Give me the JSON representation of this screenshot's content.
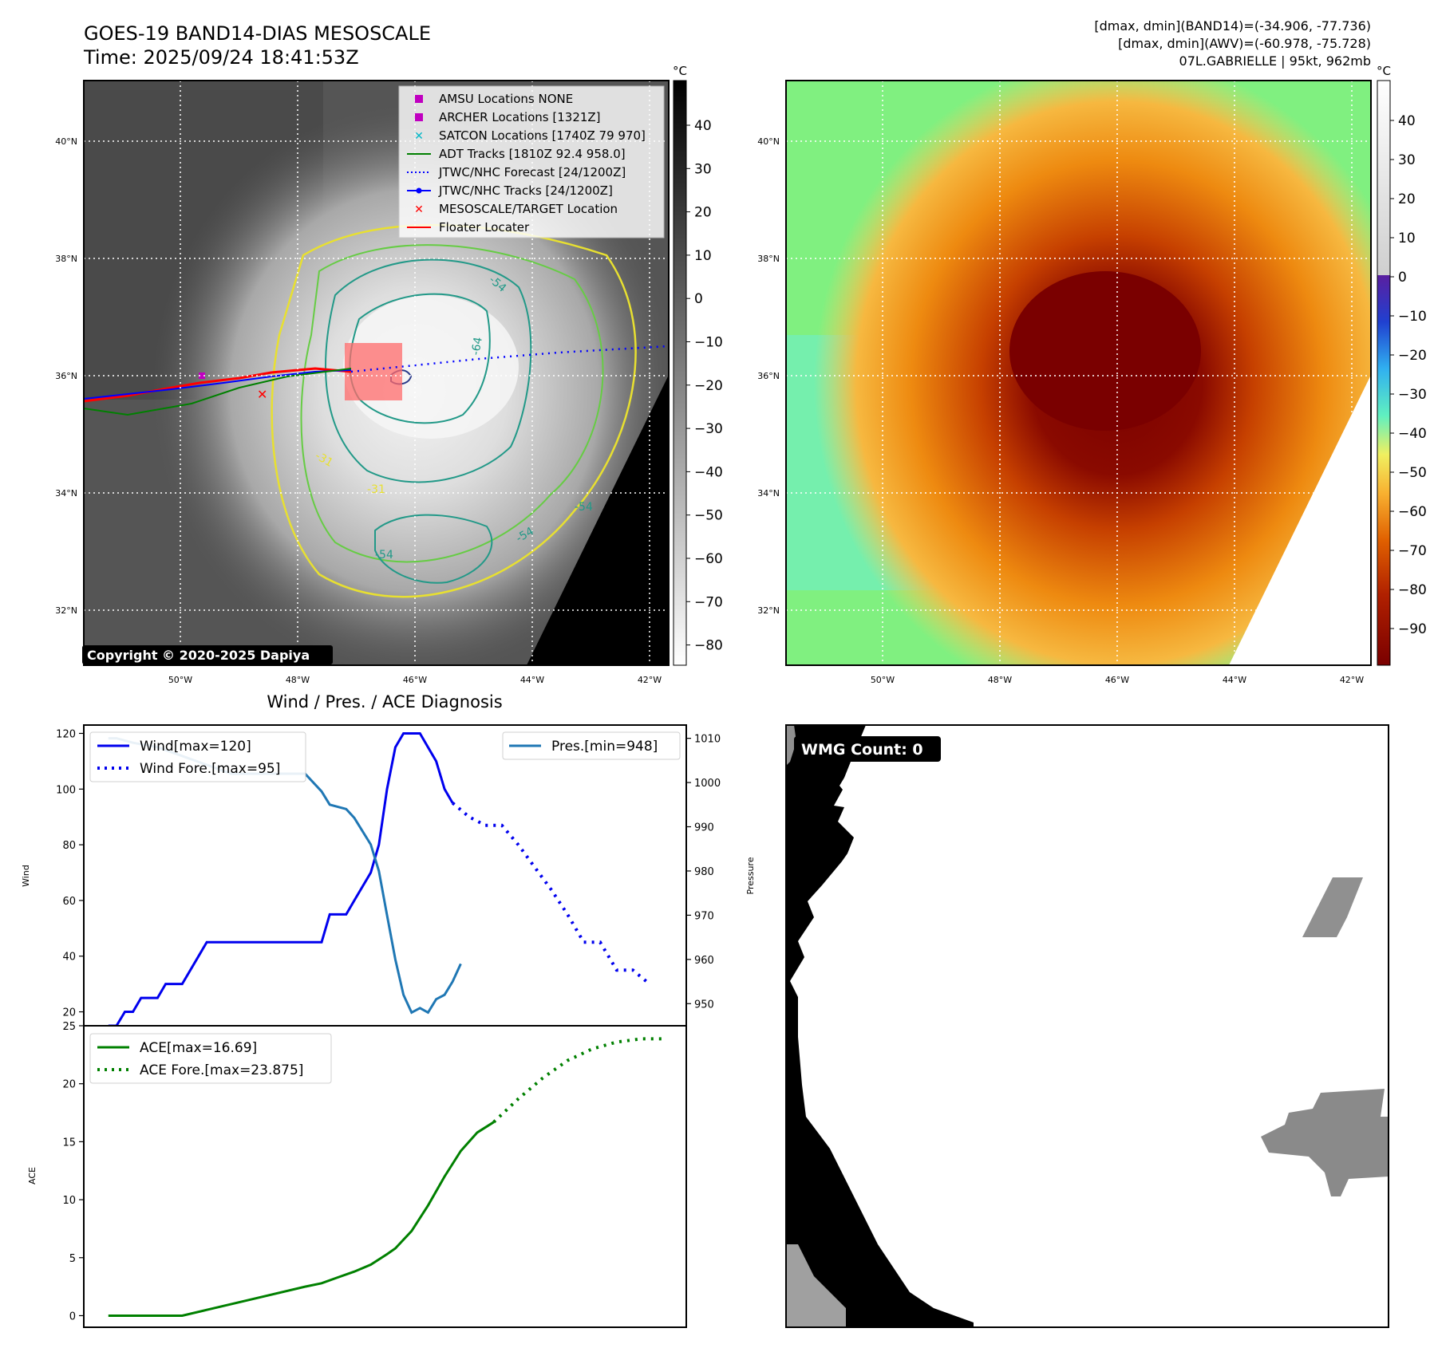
{
  "header": {
    "title": "GOES-19 BAND14-DIAS MESOSCALE",
    "time": "Time: 2025/09/24 18:41:53Z",
    "dmax_band14": "[dmax, dmin](BAND14)=(-34.906, -77.736)",
    "dmax_awv": "[dmax, dmin](AWV)=(-60.978, -75.728)",
    "storm": "07L.GABRIELLE | 95kt, 962mb"
  },
  "map_left": {
    "lat_labels": [
      "40°N",
      "38°N",
      "36°N",
      "34°N",
      "32°N"
    ],
    "lon_labels": [
      "50°W",
      "48°W",
      "46°W",
      "44°W",
      "42°W"
    ],
    "copyright": "Copyright © 2020-2025 Dapiya",
    "colorbar_unit": "°C",
    "colorbar_ticks": [
      "40",
      "30",
      "20",
      "10",
      "0",
      "−10",
      "−20",
      "−30",
      "−40",
      "−50",
      "−60",
      "−70",
      "−80"
    ],
    "contour_labels": [
      "-54",
      "-64",
      "-31",
      "-31",
      "-54",
      "-54",
      "-54"
    ],
    "legend": [
      {
        "label": "AMSU Locations NONE",
        "color": "#c000c0",
        "kind": "square"
      },
      {
        "label": "ARCHER Locations [1321Z]",
        "color": "#c000c0",
        "kind": "square"
      },
      {
        "label": "SATCON Locations [1740Z 79 970]",
        "color": "#00b8c8",
        "kind": "x"
      },
      {
        "label": "ADT Tracks [1810Z 92.4 958.0]",
        "color": "#008000",
        "kind": "line"
      },
      {
        "label": "JTWC/NHC Forecast [24/1200Z]",
        "color": "#0000ff",
        "kind": "dotted"
      },
      {
        "label": "JTWC/NHC Tracks [24/1200Z]",
        "color": "#0000ff",
        "kind": "linedot"
      },
      {
        "label": "MESOSCALE/TARGET Location",
        "color": "#ff0000",
        "kind": "x"
      },
      {
        "label": "Floater Locater",
        "color": "#ff0000",
        "kind": "line"
      }
    ]
  },
  "map_right": {
    "lat_labels": [
      "40°N",
      "38°N",
      "36°N",
      "34°N",
      "32°N"
    ],
    "lon_labels": [
      "50°W",
      "48°W",
      "46°W",
      "44°W",
      "42°W"
    ],
    "colorbar_unit": "°C",
    "colorbar_ticks": [
      "40",
      "30",
      "20",
      "10",
      "0",
      "−10",
      "−20",
      "−30",
      "−40",
      "−50",
      "−60",
      "−70",
      "−80",
      "−90"
    ]
  },
  "wmg": {
    "label": "WMG Count: 0"
  },
  "chart_data": [
    {
      "type": "line",
      "title": "Wind / Pres. / ACE Diagnosis",
      "ylabel": "Wind",
      "y2label": "Pressure",
      "ylim": [
        15,
        123
      ],
      "y2lim": [
        945,
        1013
      ],
      "yticks": [
        20,
        40,
        60,
        80,
        100,
        120
      ],
      "y2ticks": [
        950,
        960,
        970,
        980,
        990,
        1000,
        1010
      ],
      "legend_left": [
        "Wind[max=120]",
        "Wind Fore.[max=95]"
      ],
      "legend_right": [
        "Pres.[min=948]"
      ],
      "series": [
        {
          "name": "Wind[max=120]",
          "color": "#0000ee",
          "style": "solid",
          "values": [
            [
              0,
              15
            ],
            [
              0.33,
              15
            ],
            [
              0.67,
              20
            ],
            [
              1,
              20
            ],
            [
              1.33,
              25
            ],
            [
              2,
              25
            ],
            [
              2.33,
              30
            ],
            [
              3,
              30
            ],
            [
              4,
              45
            ],
            [
              8,
              45
            ],
            [
              8.67,
              45
            ],
            [
              9,
              55
            ],
            [
              9.67,
              55
            ],
            [
              10,
              60
            ],
            [
              10.67,
              70
            ],
            [
              11,
              80
            ],
            [
              11.33,
              100
            ],
            [
              11.67,
              115
            ],
            [
              12,
              120
            ],
            [
              12.67,
              120
            ],
            [
              13,
              115
            ],
            [
              13.33,
              110
            ],
            [
              13.67,
              100
            ],
            [
              14,
              95
            ]
          ]
        },
        {
          "name": "Wind Fore.[max=95]",
          "color": "#0000ee",
          "style": "dotted",
          "values": [
            [
              14,
              95
            ],
            [
              14.67,
              90
            ],
            [
              15.33,
              87
            ],
            [
              16,
              87
            ],
            [
              16.67,
              80
            ],
            [
              17.33,
              72
            ],
            [
              18,
              64
            ],
            [
              18.67,
              55
            ],
            [
              19.33,
              45
            ],
            [
              20,
              45
            ],
            [
              20.67,
              35
            ],
            [
              21.33,
              35
            ],
            [
              22,
              30
            ]
          ]
        },
        {
          "name": "Pres.[min=948]",
          "color": "#1f77b4",
          "style": "solid",
          "axis": "right",
          "values": [
            [
              0,
              1010
            ],
            [
              0.33,
              1010
            ],
            [
              1,
              1009
            ],
            [
              2,
              1008
            ],
            [
              3,
              1006
            ],
            [
              4,
              1004
            ],
            [
              5,
              1002
            ],
            [
              7,
              1002
            ],
            [
              8,
              1002
            ],
            [
              8.67,
              998
            ],
            [
              9,
              995
            ],
            [
              9.67,
              994
            ],
            [
              10,
              992
            ],
            [
              10.67,
              986
            ],
            [
              11,
              980
            ],
            [
              11.33,
              970
            ],
            [
              11.67,
              960
            ],
            [
              12,
              952
            ],
            [
              12.33,
              948
            ],
            [
              12.67,
              949
            ],
            [
              13,
              948
            ],
            [
              13.33,
              951
            ],
            [
              13.67,
              952
            ],
            [
              14,
              955
            ],
            [
              14.33,
              959
            ]
          ]
        }
      ]
    },
    {
      "type": "line",
      "ylabel": "ACE",
      "ylim": [
        -1,
        25
      ],
      "yticks": [
        0,
        5,
        10,
        15,
        20,
        25
      ],
      "legend": [
        "ACE[max=16.69]",
        "ACE Fore.[max=23.875]"
      ],
      "series": [
        {
          "name": "ACE[max=16.69]",
          "color": "#008000",
          "style": "solid",
          "values": [
            [
              0,
              0
            ],
            [
              3,
              0
            ],
            [
              4,
              0.5
            ],
            [
              6,
              1.5
            ],
            [
              8,
              2.5
            ],
            [
              8.67,
              2.8
            ],
            [
              9.33,
              3.3
            ],
            [
              10,
              3.8
            ],
            [
              10.67,
              4.4
            ],
            [
              11.33,
              5.3
            ],
            [
              11.67,
              5.8
            ],
            [
              12.33,
              7.3
            ],
            [
              13,
              9.5
            ],
            [
              13.67,
              12
            ],
            [
              14.33,
              14.2
            ],
            [
              15,
              15.8
            ],
            [
              15.67,
              16.69
            ]
          ]
        },
        {
          "name": "ACE Fore.[max=23.875]",
          "color": "#008000",
          "style": "dotted",
          "values": [
            [
              15.67,
              16.69
            ],
            [
              16.67,
              18.7
            ],
            [
              17.67,
              20.5
            ],
            [
              18.67,
              22
            ],
            [
              19.67,
              23
            ],
            [
              20.67,
              23.6
            ],
            [
              21.67,
              23.875
            ],
            [
              22.67,
              23.875
            ]
          ]
        }
      ]
    }
  ]
}
